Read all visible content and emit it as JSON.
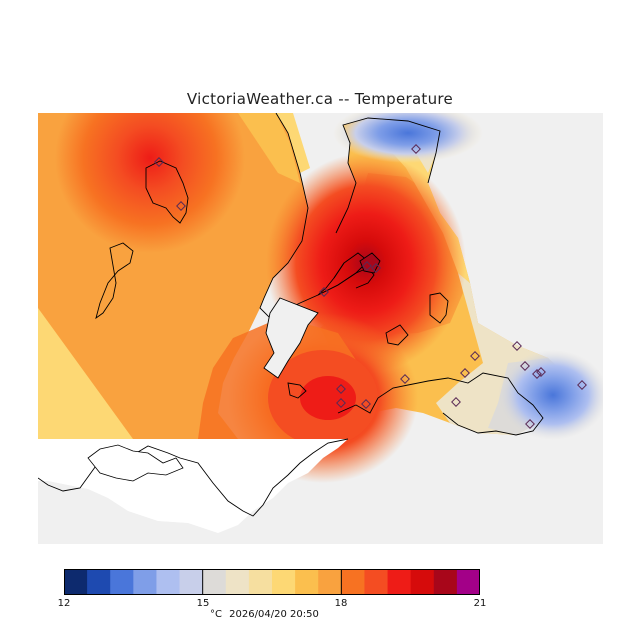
{
  "map": {
    "title": "VictoriaWeather.ca -- Temperature",
    "unit": "°C",
    "timestamp": "2026/04/20 20:50",
    "colorbar": {
      "min": 12,
      "max": 21,
      "ticks": [
        "12",
        "15",
        "18",
        "21"
      ],
      "colors": [
        "#0d2a6e",
        "#1e4ab0",
        "#4a76da",
        "#7f9ee8",
        "#aebff0",
        "#c8cfea",
        "#dddbd8",
        "#eee3c6",
        "#f6dfa0",
        "#fdd874",
        "#fbbf4e",
        "#f9a23f",
        "#f77222",
        "#f44d22",
        "#ee1c17",
        "#d60b0b",
        "#a8061a",
        "#a30088"
      ]
    },
    "station_count": 19
  }
}
